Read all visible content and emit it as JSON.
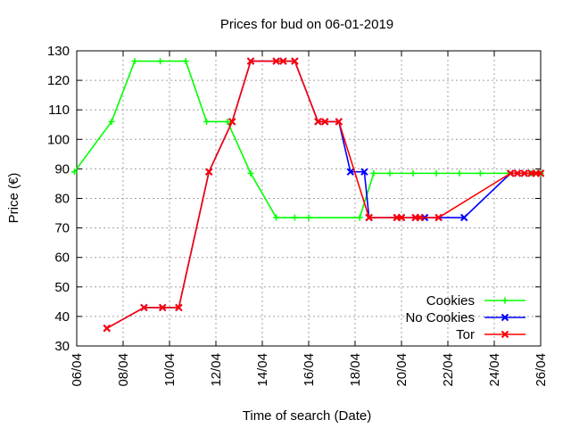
{
  "chart_data": {
    "type": "line",
    "title": "Prices for bud on 06-01-2019",
    "xlabel": "Time of search (Date)",
    "ylabel": "Price (€)",
    "x_ticks": [
      "06/04",
      "08/04",
      "10/04",
      "12/04",
      "14/04",
      "16/04",
      "18/04",
      "20/04",
      "22/04",
      "24/04",
      "26/04"
    ],
    "xlim_days": [
      0,
      20
    ],
    "ylim": [
      30,
      130
    ],
    "y_ticks": [
      30,
      40,
      50,
      60,
      70,
      80,
      90,
      100,
      110,
      120,
      130
    ],
    "grid": true,
    "legend_position": "bottom-right",
    "series": [
      {
        "name": "Cookies",
        "color": "#00ff00",
        "marker": "plus",
        "x": [
          5.9,
          7.5,
          8.5,
          9.6,
          10.7,
          11.6,
          12.5,
          13.5,
          14.6,
          15.4,
          16.0,
          18.2,
          18.8,
          19.5,
          20.5,
          21.5,
          22.5,
          23.4,
          24.6,
          25.6,
          26.0
        ],
        "y": [
          89,
          106,
          126.5,
          126.5,
          126.5,
          106,
          106,
          88.5,
          73.5,
          73.5,
          73.5,
          73.5,
          88.5,
          88.5,
          88.5,
          88.5,
          88.5,
          88.5,
          88.5,
          88.5,
          88.5
        ]
      },
      {
        "name": "No Cookies",
        "color": "#0000ff",
        "marker": "cross",
        "x": [
          7.3,
          8.9,
          9.7,
          10.4,
          11.7,
          12.7,
          13.5,
          14.6,
          14.9,
          15.4,
          16.4,
          16.7,
          17.3,
          17.8,
          18.4,
          18.6,
          19.8,
          20.0,
          20.6,
          20.8,
          21.0,
          21.6,
          22.7,
          24.7,
          25.0,
          25.3,
          25.6,
          25.8,
          26.0
        ],
        "y": [
          36,
          43,
          43,
          43,
          89,
          106,
          126.5,
          126.5,
          126.5,
          126.5,
          106,
          106,
          106,
          89,
          89,
          73.5,
          73.5,
          73.5,
          73.5,
          73.5,
          73.5,
          73.5,
          73.5,
          88.5,
          88.5,
          88.5,
          88.5,
          88.5,
          88.5
        ]
      },
      {
        "name": "Tor",
        "color": "#ff0000",
        "marker": "cross",
        "x": [
          7.3,
          8.9,
          9.7,
          10.4,
          11.7,
          12.7,
          13.5,
          14.6,
          14.9,
          15.4,
          16.4,
          16.7,
          17.3,
          18.6,
          19.8,
          20.0,
          20.6,
          20.8,
          21.6,
          24.7,
          25.0,
          25.3,
          25.6,
          25.8,
          26.0
        ],
        "y": [
          36,
          43,
          43,
          43,
          89,
          106,
          126.5,
          126.5,
          126.5,
          126.5,
          106,
          106,
          106,
          73.5,
          73.5,
          73.5,
          73.5,
          73.5,
          73.5,
          88.5,
          88.5,
          88.5,
          88.5,
          88.5,
          88.5
        ]
      }
    ]
  }
}
